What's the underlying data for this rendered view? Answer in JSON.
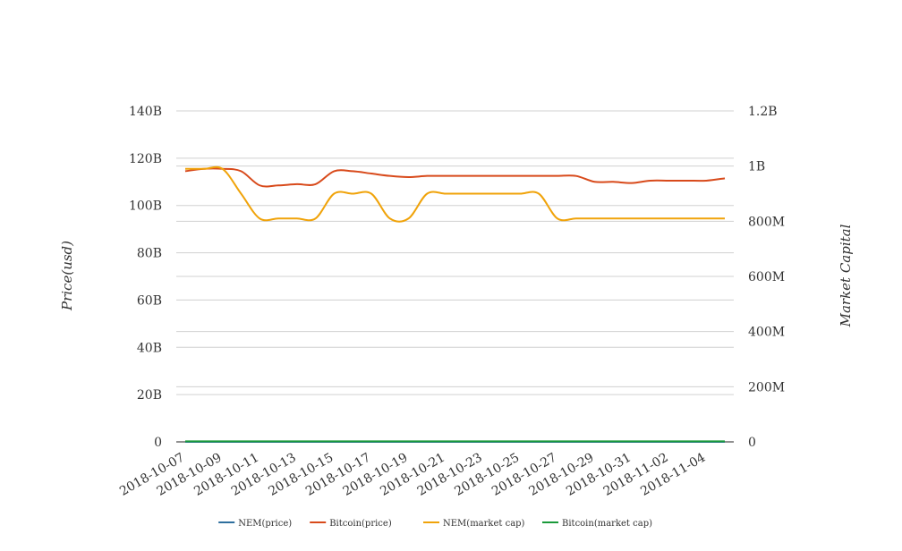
{
  "chart_data": {
    "type": "line",
    "title": "",
    "xlabel": "",
    "ylabel": "Price(usd)",
    "y2label": "Market Capital",
    "ylim": [
      0,
      140000000000
    ],
    "y2lim": [
      0,
      1200000000
    ],
    "y_ticks": [
      {
        "value": 0,
        "label": "0"
      },
      {
        "value": 20000000000,
        "label": "20B"
      },
      {
        "value": 40000000000,
        "label": "40B"
      },
      {
        "value": 60000000000,
        "label": "60B"
      },
      {
        "value": 80000000000,
        "label": "80B"
      },
      {
        "value": 100000000000,
        "label": "100B"
      },
      {
        "value": 120000000000,
        "label": "120B"
      },
      {
        "value": 140000000000,
        "label": "140B"
      }
    ],
    "y2_ticks": [
      {
        "value": 0,
        "label": "0"
      },
      {
        "value": 200000000,
        "label": "200M"
      },
      {
        "value": 400000000,
        "label": "400M"
      },
      {
        "value": 600000000,
        "label": "600M"
      },
      {
        "value": 800000000,
        "label": "800M"
      },
      {
        "value": 1000000000,
        "label": "1B"
      },
      {
        "value": 1200000000,
        "label": "1.2B"
      }
    ],
    "x": [
      "2018-10-07",
      "2018-10-08",
      "2018-10-09",
      "2018-10-10",
      "2018-10-11",
      "2018-10-12",
      "2018-10-13",
      "2018-10-14",
      "2018-10-15",
      "2018-10-16",
      "2018-10-17",
      "2018-10-18",
      "2018-10-19",
      "2018-10-20",
      "2018-10-21",
      "2018-10-22",
      "2018-10-23",
      "2018-10-24",
      "2018-10-25",
      "2018-10-26",
      "2018-10-27",
      "2018-10-28",
      "2018-10-29",
      "2018-10-30",
      "2018-10-31",
      "2018-11-01",
      "2018-11-02",
      "2018-11-03",
      "2018-11-04",
      "2018-11-05"
    ],
    "x_tick_labels": [
      "2018-10-07",
      "2018-10-09",
      "2018-10-11",
      "2018-10-13",
      "2018-10-15",
      "2018-10-17",
      "2018-10-19",
      "2018-10-21",
      "2018-10-23",
      "2018-10-25",
      "2018-10-27",
      "2018-10-29",
      "2018-10-31",
      "2018-11-02",
      "2018-11-04"
    ],
    "grid": true,
    "legend_position": "bottom",
    "series": [
      {
        "name": "NEM(price)",
        "axis": "left",
        "color": "#2e6f9e",
        "values": [
          0.11,
          0.11,
          0.11,
          0.1,
          0.1,
          0.1,
          0.1,
          0.1,
          0.1,
          0.1,
          0.1,
          0.1,
          0.1,
          0.1,
          0.1,
          0.1,
          0.1,
          0.1,
          0.1,
          0.1,
          0.1,
          0.1,
          0.1,
          0.1,
          0.1,
          0.1,
          0.1,
          0.1,
          0.1,
          0.1
        ]
      },
      {
        "name": "Bitcoin(price)",
        "axis": "left",
        "color": "#d84a1b",
        "values": [
          114500000000,
          115500000000,
          115500000000,
          114500000000,
          108500000000,
          108500000000,
          109000000000,
          109000000000,
          114500000000,
          114500000000,
          113500000000,
          112500000000,
          112000000000,
          112500000000,
          112500000000,
          112500000000,
          112500000000,
          112500000000,
          112500000000,
          112500000000,
          112500000000,
          112500000000,
          110000000000,
          110000000000,
          109500000000,
          110500000000,
          110500000000,
          110500000000,
          110500000000,
          111500000000
        ]
      },
      {
        "name": "NEM(market cap)",
        "axis": "right",
        "color": "#f0a30a",
        "values": [
          990000000,
          990000000,
          990000000,
          900000000,
          810000000,
          810000000,
          810000000,
          810000000,
          900000000,
          900000000,
          900000000,
          810000000,
          810000000,
          900000000,
          900000000,
          900000000,
          900000000,
          900000000,
          900000000,
          900000000,
          810000000,
          810000000,
          810000000,
          810000000,
          810000000,
          810000000,
          810000000,
          810000000,
          810000000,
          810000000
        ]
      },
      {
        "name": "Bitcoin(market cap)",
        "axis": "right",
        "color": "#1a9a3a",
        "values": [
          2000000,
          2000000,
          2000000,
          2000000,
          2000000,
          2000000,
          2000000,
          2000000,
          2000000,
          2000000,
          2000000,
          2000000,
          2000000,
          2000000,
          2000000,
          2000000,
          2000000,
          2000000,
          2000000,
          2000000,
          2000000,
          2000000,
          2000000,
          2000000,
          2000000,
          2000000,
          2000000,
          2000000,
          2000000,
          2000000
        ]
      }
    ]
  }
}
